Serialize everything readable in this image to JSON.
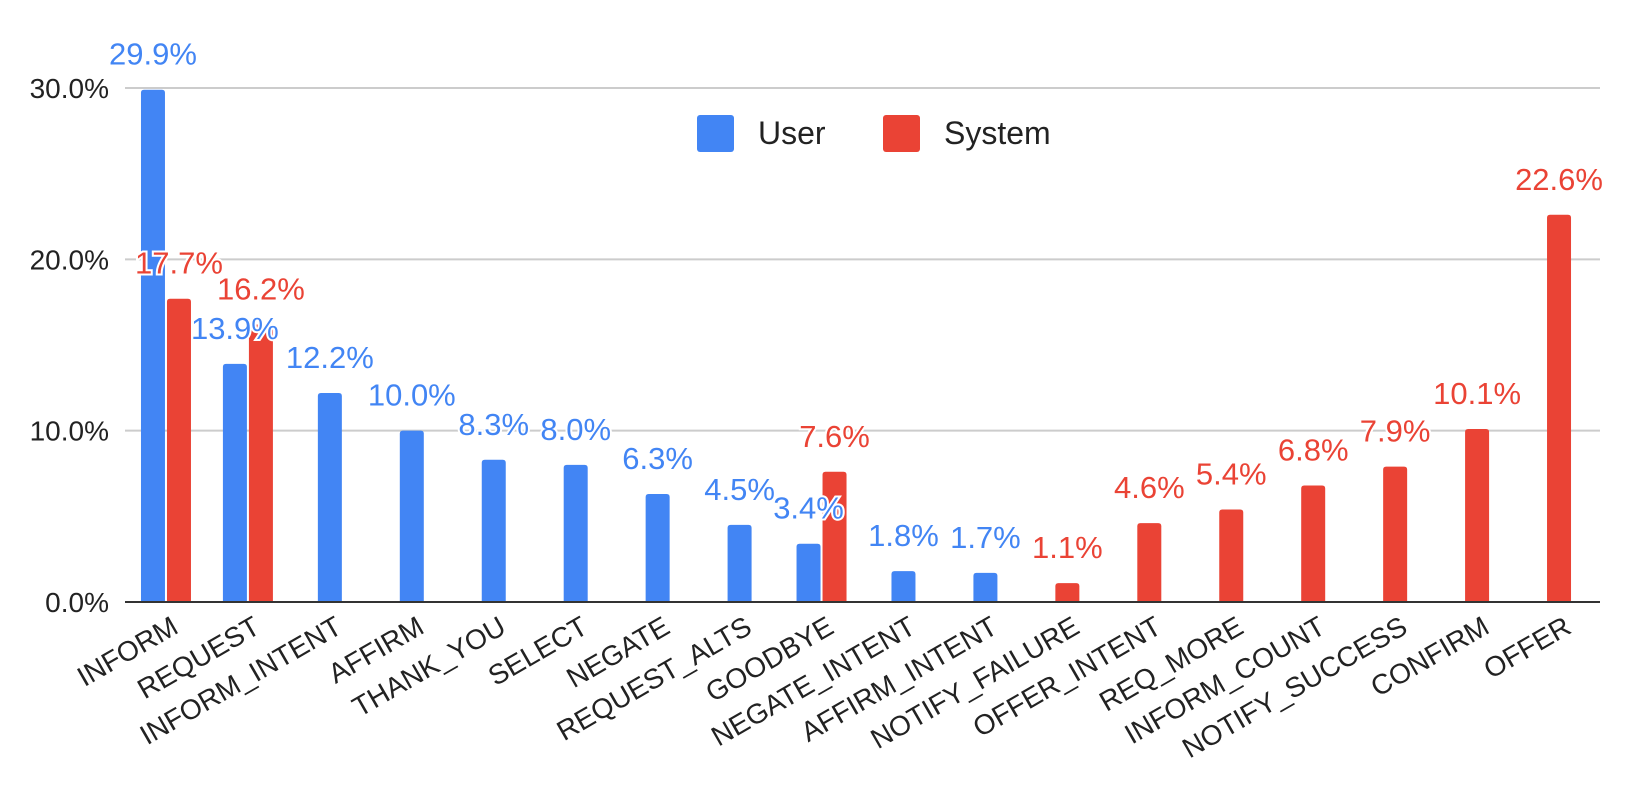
{
  "chart_data": {
    "type": "bar",
    "title": "",
    "xlabel": "",
    "ylabel": "",
    "ylim": [
      0,
      30
    ],
    "y_ticks": [
      "0.0%",
      "10.0%",
      "20.0%",
      "30.0%"
    ],
    "y_tick_values": [
      0,
      10,
      20,
      30
    ],
    "grid": true,
    "legend_position": "top-center",
    "categories": [
      "INFORM",
      "REQUEST",
      "INFORM_INTENT",
      "AFFIRM",
      "THANK_YOU",
      "SELECT",
      "NEGATE",
      "REQUEST_ALTS",
      "GOODBYE",
      "NEGATE_INTENT",
      "AFFIRM_INTENT",
      "NOTIFY_FAILURE",
      "OFFER_INTENT",
      "REQ_MORE",
      "INFORM_COUNT",
      "NOTIFY_SUCCESS",
      "CONFIRM",
      "OFFER"
    ],
    "series": [
      {
        "name": "User",
        "color": "#4285f4",
        "values": [
          29.9,
          13.9,
          12.2,
          10.0,
          8.3,
          8.0,
          6.3,
          4.5,
          3.4,
          1.8,
          1.7,
          null,
          null,
          null,
          null,
          null,
          null,
          null
        ],
        "labels": [
          "29.9%",
          "13.9%",
          "12.2%",
          "10.0%",
          "8.3%",
          "8.0%",
          "6.3%",
          "4.5%",
          "3.4%",
          "1.8%",
          "1.7%",
          "",
          "",
          "",
          "",
          "",
          "",
          ""
        ]
      },
      {
        "name": "System",
        "color": "#ea4335",
        "values": [
          17.7,
          16.2,
          null,
          null,
          null,
          null,
          null,
          null,
          7.6,
          null,
          null,
          1.1,
          4.6,
          5.4,
          6.8,
          7.9,
          10.1,
          22.6
        ],
        "labels": [
          "17.7%",
          "16.2%",
          "",
          "",
          "",
          "",
          "",
          "",
          "7.6%",
          "",
          "",
          "1.1%",
          "4.6%",
          "5.4%",
          "6.8%",
          "7.9%",
          "10.1%",
          "22.6%"
        ]
      }
    ]
  }
}
